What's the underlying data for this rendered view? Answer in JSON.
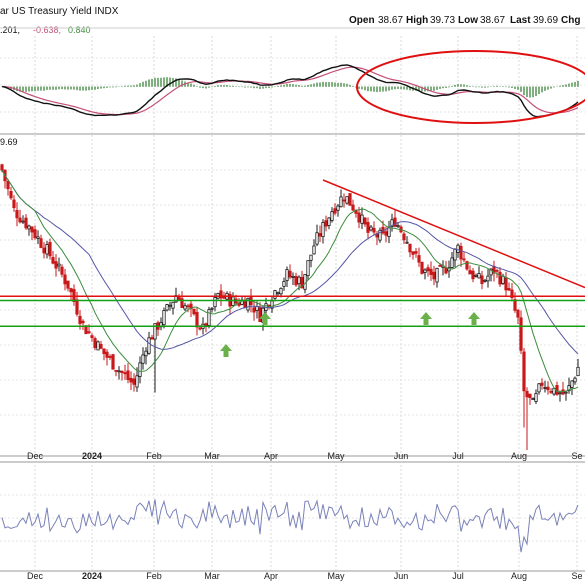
{
  "header": {
    "title": "ar US Treasury Yield INDX",
    "open_label": "Open",
    "open_value": "38.67",
    "high_label": "High",
    "high_value": "39.73",
    "low_label": "Low",
    "low_value": "38.67",
    "last_label": "Last",
    "last_value": "39.69",
    "chg_label": "Chg"
  },
  "macd_panel": {
    "legend": ".201, -0.638, 0.840",
    "legend_parts": [
      ".201,",
      "-0.638,",
      "0.840"
    ]
  },
  "price_panel": {
    "last_value_tag": "9.69"
  },
  "x_axis_labels": [
    "Dec",
    "2024",
    "Feb",
    "Mar",
    "Apr",
    "May",
    "Jun",
    "Jul",
    "Aug",
    "Se"
  ],
  "colors": {
    "up_candle": "#1a1a1a",
    "down_candle": "#c8191b",
    "ma_short": "#3c8c3c",
    "ma_long": "#5656a6",
    "support_line": "#14a014",
    "resistance_line": "#e01010",
    "trendline": "#e01010",
    "arrow": "#6bb04a",
    "macd_line": "#111111",
    "signal_line": "#c4507a",
    "histogram": "#7fae7f",
    "rsi_line": "#7a82b8"
  },
  "chart_data": {
    "type": "candlestick",
    "title": "ar US Treasury Yield INDX",
    "x_range": [
      "2023-11",
      "2024-09"
    ],
    "x_ticks": [
      "Dec",
      "2024",
      "Feb",
      "Mar",
      "Apr",
      "May",
      "Jun",
      "Jul",
      "Aug",
      "Se"
    ],
    "ohlc_last": {
      "open": 38.67,
      "high": 39.73,
      "low": 38.67,
      "close": 39.69
    },
    "annotations": [
      {
        "type": "horizontal_line",
        "color": "red",
        "level": "resistance"
      },
      {
        "type": "horizontal_line",
        "color": "green",
        "level": "upper support"
      },
      {
        "type": "horizontal_line",
        "color": "green",
        "level": "lower support"
      },
      {
        "type": "trendline",
        "color": "red",
        "from": "May",
        "to": "Sep"
      },
      {
        "type": "ellipse",
        "panel": "MACD",
        "from": "Apr",
        "to": "Sep"
      },
      {
        "type": "up_arrows",
        "count": 4,
        "dates": [
          "Mar",
          "Apr",
          "Jun",
          "Jul"
        ]
      }
    ],
    "indicators": [
      "MACD",
      "moving average (short, green)",
      "moving average (long, blue)",
      "RSI"
    ],
    "macd_values": [
      0.201,
      -0.638,
      0.84
    ],
    "series_shape": [
      {
        "t": "Nov",
        "v": 48.0
      },
      {
        "t": "Dec",
        "v": 43.5
      },
      {
        "t": "Jan",
        "v": 39.0
      },
      {
        "t": "Jan-end",
        "v": 41.5
      },
      {
        "t": "Feb",
        "v": 41.0
      },
      {
        "t": "Mar",
        "v": 42.0
      },
      {
        "t": "Apr",
        "v": 44.5
      },
      {
        "t": "May",
        "v": 46.5
      },
      {
        "t": "Jun",
        "v": 43.5
      },
      {
        "t": "Jul",
        "v": 43.8
      },
      {
        "t": "Aug",
        "v": 38.5
      },
      {
        "t": "Sep",
        "v": 39.7
      }
    ]
  }
}
